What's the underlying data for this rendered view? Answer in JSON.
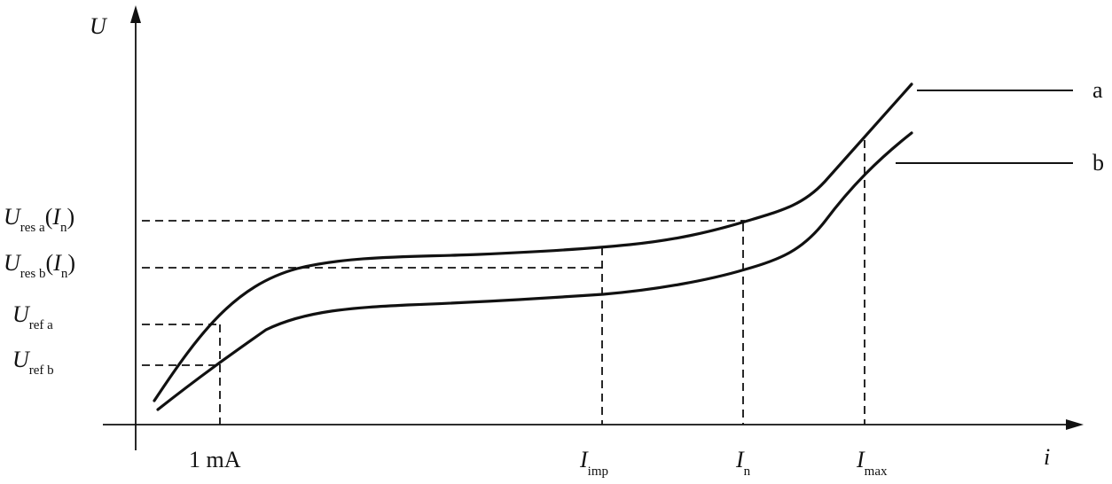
{
  "axes": {
    "y_symbol": "U",
    "x_symbol": "i"
  },
  "x_ticks": {
    "one_ma": "1  mA",
    "i_imp": {
      "symbol": "I",
      "sub": "imp"
    },
    "i_n": {
      "symbol": "I",
      "sub": "n"
    },
    "i_max": {
      "symbol": "I",
      "sub": "max"
    }
  },
  "y_ticks": {
    "u_res_a": {
      "symbol": "U",
      "sub": "res a",
      "open": "(",
      "arg": "I",
      "arg_sub": "n",
      "close": ")"
    },
    "u_res_b": {
      "symbol": "U",
      "sub": "res b",
      "open": "(",
      "arg": "I",
      "arg_sub": "n",
      "close": ")"
    },
    "u_ref_a": {
      "symbol": "U",
      "sub": "ref a"
    },
    "u_ref_b": {
      "symbol": "U",
      "sub": "ref b"
    }
  },
  "curves": {
    "a": "a",
    "b": "b"
  }
}
